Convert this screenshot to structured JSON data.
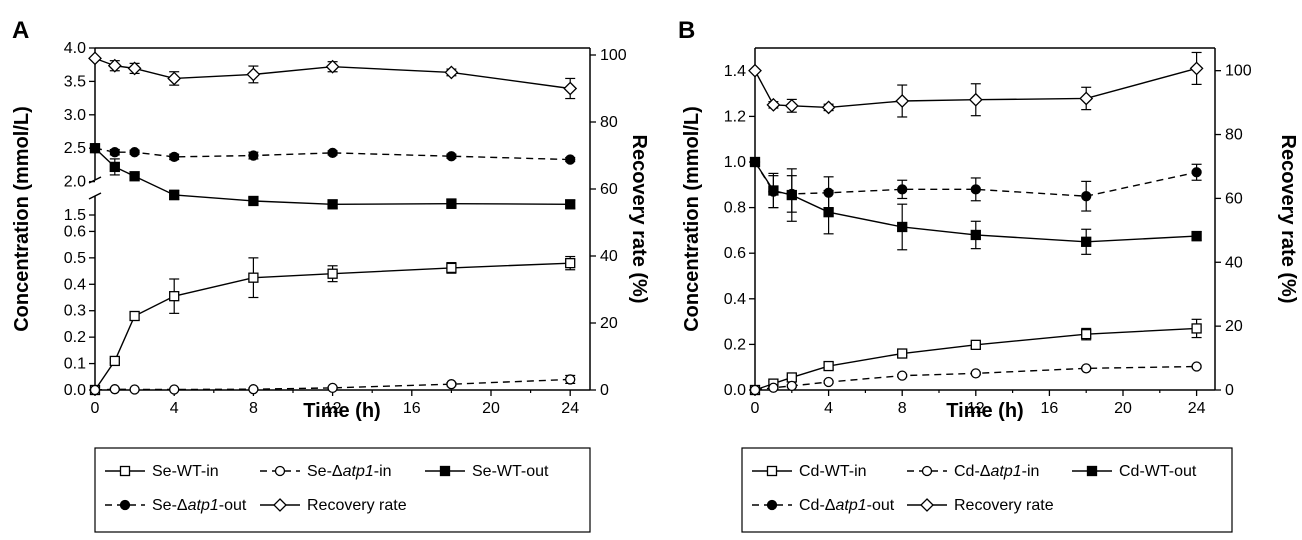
{
  "chart_data": [
    {
      "panel_label": "A",
      "type": "line",
      "xlabel": "Time (h)",
      "ylabel": "Concentration (mmol/L)",
      "ylabel_right": "Recovery rate (%)",
      "x_ticks": [
        "0",
        "4",
        "8",
        "12",
        "16",
        "20",
        "24"
      ],
      "xlim": [
        0,
        25
      ],
      "y_axis_break": true,
      "y_lower_range": [
        0,
        0.7
      ],
      "y_lower_ticks": [
        "0.0",
        "0.1",
        "0.2",
        "0.3",
        "0.4",
        "0.5",
        "0.6"
      ],
      "y_upper_range": [
        1.5,
        4.0
      ],
      "y_upper_ticks": [
        "1.5",
        "2.0",
        "2.5",
        "3.0",
        "3.5",
        "4.0"
      ],
      "y_right_range": [
        0,
        100
      ],
      "y_right_ticks": [
        "0",
        "20",
        "40",
        "60",
        "80",
        "100"
      ],
      "series": [
        {
          "name": "Se-WT-in",
          "axis": "left",
          "marker": "open-square",
          "dash": "solid",
          "x": [
            0,
            1,
            2,
            4,
            8,
            12,
            18,
            24
          ],
          "y": [
            0,
            0.11,
            0.28,
            0.355,
            0.425,
            0.44,
            0.462,
            0.48
          ],
          "err": [
            0,
            0.008,
            0.015,
            0.065,
            0.075,
            0.03,
            0.02,
            0.025
          ]
        },
        {
          "name": "Se-Δatp1-in",
          "axis": "left",
          "marker": "open-circle",
          "dash": "dashed",
          "x": [
            0,
            1,
            2,
            4,
            8,
            12,
            18,
            24
          ],
          "y": [
            0,
            0.003,
            0.002,
            0.002,
            0.003,
            0.008,
            0.022,
            0.04
          ],
          "err": [
            0,
            0.002,
            0.002,
            0.002,
            0.002,
            0.004,
            0.006,
            0.015
          ]
        },
        {
          "name": "Se-WT-out",
          "axis": "left",
          "marker": "filled-square",
          "dash": "solid",
          "x": [
            0,
            1,
            2,
            4,
            8,
            12,
            18,
            24
          ],
          "y": [
            2.5,
            2.22,
            2.08,
            1.8,
            1.71,
            1.66,
            1.67,
            1.66
          ],
          "err": [
            0,
            0.12,
            0.03,
            0.07,
            0.05,
            0.06,
            0.07,
            0.06
          ]
        },
        {
          "name": "Se-Δatp1-out",
          "axis": "left",
          "marker": "filled-circle",
          "dash": "dashed",
          "x": [
            0,
            1,
            2,
            4,
            8,
            12,
            18,
            24
          ],
          "y": [
            2.5,
            2.44,
            2.44,
            2.37,
            2.39,
            2.43,
            2.38,
            2.33
          ],
          "err": [
            0,
            0.04,
            0.03,
            0.04,
            0.05,
            0.03,
            0.03,
            0.03
          ]
        },
        {
          "name": "Recovery rate",
          "axis": "right",
          "marker": "open-diamond",
          "dash": "solid",
          "x": [
            0,
            1,
            2,
            4,
            8,
            12,
            18,
            24
          ],
          "y": [
            99,
            96.8,
            96,
            93,
            94.2,
            96.5,
            94.8,
            90
          ],
          "err": [
            0,
            1.5,
            1.5,
            2,
            2.5,
            1.5,
            1,
            3
          ]
        }
      ],
      "legend": {
        "row1": [
          "Se-WT-in",
          "Se-Δatp1-in",
          "Se-WT-out"
        ],
        "row2": [
          "Se-Δatp1-out",
          "Recovery rate"
        ],
        "items": [
          {
            "prefix": "Se-WT-in",
            "italic": "",
            "suffix": ""
          },
          {
            "prefix": "Se-Δ",
            "italic": "atp1",
            "suffix": "-in"
          },
          {
            "prefix": "Se-WT-out",
            "italic": "",
            "suffix": ""
          },
          {
            "prefix": "Se-Δ",
            "italic": "atp1",
            "suffix": "-out"
          },
          {
            "prefix": "Recovery rate",
            "italic": "",
            "suffix": ""
          }
        ]
      }
    },
    {
      "panel_label": "B",
      "type": "line",
      "xlabel": "Time (h)",
      "ylabel": "Concentration (mmol/L)",
      "ylabel_right": "Recovery rate (%)",
      "x_ticks": [
        "0",
        "4",
        "8",
        "12",
        "16",
        "20",
        "24"
      ],
      "xlim": [
        0,
        25
      ],
      "ylim": [
        0,
        1.5
      ],
      "y_ticks": [
        "0.0",
        "0.2",
        "0.4",
        "0.6",
        "0.8",
        "1.0",
        "1.2",
        "1.4"
      ],
      "y_right_range": [
        0,
        107.1
      ],
      "y_right_ticks": [
        "0",
        "20",
        "40",
        "60",
        "80",
        "100"
      ],
      "series": [
        {
          "name": "Cd-WT-in",
          "axis": "left",
          "marker": "open-square",
          "dash": "solid",
          "x": [
            0,
            1,
            2,
            4,
            8,
            12,
            18,
            24
          ],
          "y": [
            0,
            0.028,
            0.055,
            0.105,
            0.16,
            0.198,
            0.245,
            0.27
          ],
          "err": [
            0,
            0.01,
            0.01,
            0.015,
            0.01,
            0.015,
            0.025,
            0.04
          ]
        },
        {
          "name": "Cd-Δatp1-in",
          "axis": "left",
          "marker": "open-circle",
          "dash": "dashed",
          "x": [
            0,
            1,
            2,
            4,
            8,
            12,
            18,
            24
          ],
          "y": [
            0,
            0.01,
            0.018,
            0.035,
            0.063,
            0.073,
            0.095,
            0.103
          ],
          "err": [
            0,
            0.005,
            0.005,
            0.005,
            0.005,
            0.005,
            0.005,
            0.005
          ]
        },
        {
          "name": "Cd-WT-out",
          "axis": "left",
          "marker": "filled-square",
          "dash": "solid",
          "x": [
            0,
            1,
            2,
            4,
            8,
            12,
            18,
            24
          ],
          "y": [
            1.0,
            0.875,
            0.855,
            0.78,
            0.715,
            0.68,
            0.65,
            0.675
          ],
          "err": [
            0,
            0.075,
            0.115,
            0.095,
            0.1,
            0.06,
            0.055,
            0.02
          ]
        },
        {
          "name": "Cd-Δatp1-out",
          "axis": "left",
          "marker": "filled-circle",
          "dash": "dashed",
          "x": [
            0,
            1,
            2,
            4,
            8,
            12,
            18,
            24
          ],
          "y": [
            1.0,
            0.87,
            0.86,
            0.865,
            0.88,
            0.88,
            0.85,
            0.955
          ],
          "err": [
            0,
            0.07,
            0.08,
            0.07,
            0.04,
            0.05,
            0.065,
            0.035
          ]
        },
        {
          "name": "Recovery rate",
          "axis": "right",
          "marker": "open-diamond",
          "dash": "solid",
          "x": [
            0,
            1,
            2,
            4,
            8,
            12,
            18,
            24
          ],
          "y": [
            100,
            89.3,
            89,
            88.5,
            90.5,
            90.9,
            91.3,
            100.7
          ],
          "err": [
            0,
            1,
            2,
            1,
            5,
            5,
            3.5,
            5
          ]
        }
      ],
      "legend": {
        "row1": [
          "Cd-WT-in",
          "Cd-Δatp1-in",
          "Cd-WT-out"
        ],
        "row2": [
          "Cd-Δatp1-out",
          "Recovery rate"
        ],
        "items": [
          {
            "prefix": "Cd-WT-in",
            "italic": "",
            "suffix": ""
          },
          {
            "prefix": "Cd-Δ",
            "italic": "atp1",
            "suffix": "-in"
          },
          {
            "prefix": "Cd-WT-out",
            "italic": "",
            "suffix": ""
          },
          {
            "prefix": "Cd-Δ",
            "italic": "atp1",
            "suffix": "-out"
          },
          {
            "prefix": "Recovery rate",
            "italic": "",
            "suffix": ""
          }
        ]
      }
    }
  ]
}
